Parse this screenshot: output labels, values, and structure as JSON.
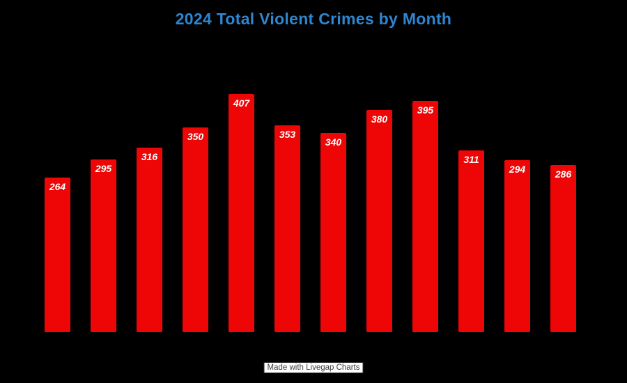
{
  "title": "2024 Total Violent Crimes by Month",
  "watermark": "Made with Livegap Charts",
  "colors": {
    "background": "#000000",
    "bar": "#ee0505",
    "bar_label": "#ffffff",
    "title": "#2e86d1",
    "watermark_bg": "#ffffff",
    "watermark_text": "#3d3d3d"
  },
  "chart_data": {
    "type": "bar",
    "title": "2024 Total Violent Crimes by Month",
    "values": [
      264,
      295,
      316,
      350,
      407,
      353,
      340,
      380,
      395,
      311,
      294,
      286
    ],
    "data_labels": [
      "264",
      "295",
      "316",
      "350",
      "407",
      "353",
      "340",
      "380",
      "395",
      "311",
      "294",
      "286"
    ],
    "categories": [],
    "xlabel": "",
    "ylabel": "",
    "ylim": [
      0,
      480
    ],
    "grid": false,
    "legend": false,
    "axis_tick_labels_visible": false,
    "data_labels_position": "inside-top",
    "data_labels_style": "italic"
  }
}
